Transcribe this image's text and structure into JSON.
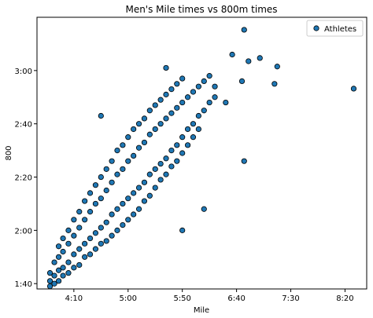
{
  "chart_data": {
    "type": "scatter",
    "title": "Men's Mile times vs 800m times",
    "x_label": "Mile",
    "y_label": "800",
    "series": [
      {
        "name": "Athletes",
        "color": "#1f77b4",
        "x": [
          228,
          228,
          228,
          232,
          232,
          232,
          236,
          236,
          236,
          236,
          240,
          240,
          240,
          240,
          245,
          245,
          245,
          245,
          250,
          250,
          250,
          250,
          255,
          255,
          255,
          255,
          260,
          260,
          260,
          260,
          265,
          265,
          265,
          265,
          270,
          270,
          270,
          270,
          275,
          275,
          275,
          275,
          275,
          280,
          280,
          280,
          280,
          285,
          285,
          285,
          285,
          290,
          290,
          290,
          290,
          295,
          295,
          295,
          295,
          300,
          300,
          300,
          300,
          305,
          305,
          305,
          305,
          310,
          310,
          310,
          310,
          315,
          315,
          315,
          315,
          320,
          320,
          320,
          320,
          325,
          325,
          325,
          325,
          330,
          330,
          330,
          330,
          335,
          335,
          335,
          335,
          335,
          340,
          340,
          340,
          340,
          345,
          345,
          345,
          345,
          350,
          350,
          350,
          350,
          350,
          355,
          355,
          355,
          360,
          360,
          360,
          365,
          365,
          365,
          370,
          370,
          370,
          375,
          375,
          380,
          380,
          407,
          437.5,
          435,
          421.5,
          396,
          411,
          407,
          508,
          405,
          390
        ],
        "values": [
          101,
          104,
          99,
          103,
          108,
          100,
          105,
          110,
          101,
          114,
          106,
          112,
          103,
          117,
          108,
          115,
          104,
          120,
          111,
          118,
          106,
          124,
          113,
          121,
          107,
          127,
          115,
          124,
          110,
          131,
          117,
          127,
          111,
          134,
          119,
          130,
          113,
          137,
          121,
          132,
          115,
          140,
          163,
          123,
          135,
          116,
          143,
          126,
          138,
          118,
          146,
          128,
          141,
          120,
          150,
          130,
          143,
          122,
          152,
          132,
          146,
          124,
          155,
          134,
          148,
          126,
          158,
          136,
          151,
          128,
          160,
          138,
          153,
          131,
          162,
          141,
          156,
          133,
          165,
          143,
          158,
          136,
          167,
          145,
          160,
          139,
          169,
          147,
          162,
          141,
          171,
          181,
          150,
          164,
          144,
          173,
          152,
          166,
          146,
          175,
          155,
          168,
          149,
          120,
          177,
          158,
          170,
          152,
          160,
          172,
          155,
          163,
          174,
          158,
          165,
          176,
          128,
          168,
          178,
          170,
          174,
          195.3,
          181.5,
          175,
          184.7,
          186,
          183.5,
          146,
          173.2,
          176,
          168
        ]
      }
    ],
    "xlim": [
      216,
      520
    ],
    "ylim": [
      98,
      200
    ],
    "xticks": [
      {
        "value": 250,
        "label": "4:10"
      },
      {
        "value": 300,
        "label": "5:00"
      },
      {
        "value": 350,
        "label": "5:50"
      },
      {
        "value": 400,
        "label": "6:40"
      },
      {
        "value": 450,
        "label": "7:30"
      },
      {
        "value": 500,
        "label": "8:20"
      }
    ],
    "yticks": [
      {
        "value": 100,
        "label": "1:40"
      },
      {
        "value": 120,
        "label": "2:00"
      },
      {
        "value": 140,
        "label": "2:20"
      },
      {
        "value": 160,
        "label": "2:40"
      },
      {
        "value": 180,
        "label": "3:00"
      }
    ],
    "legend": "upper right"
  }
}
